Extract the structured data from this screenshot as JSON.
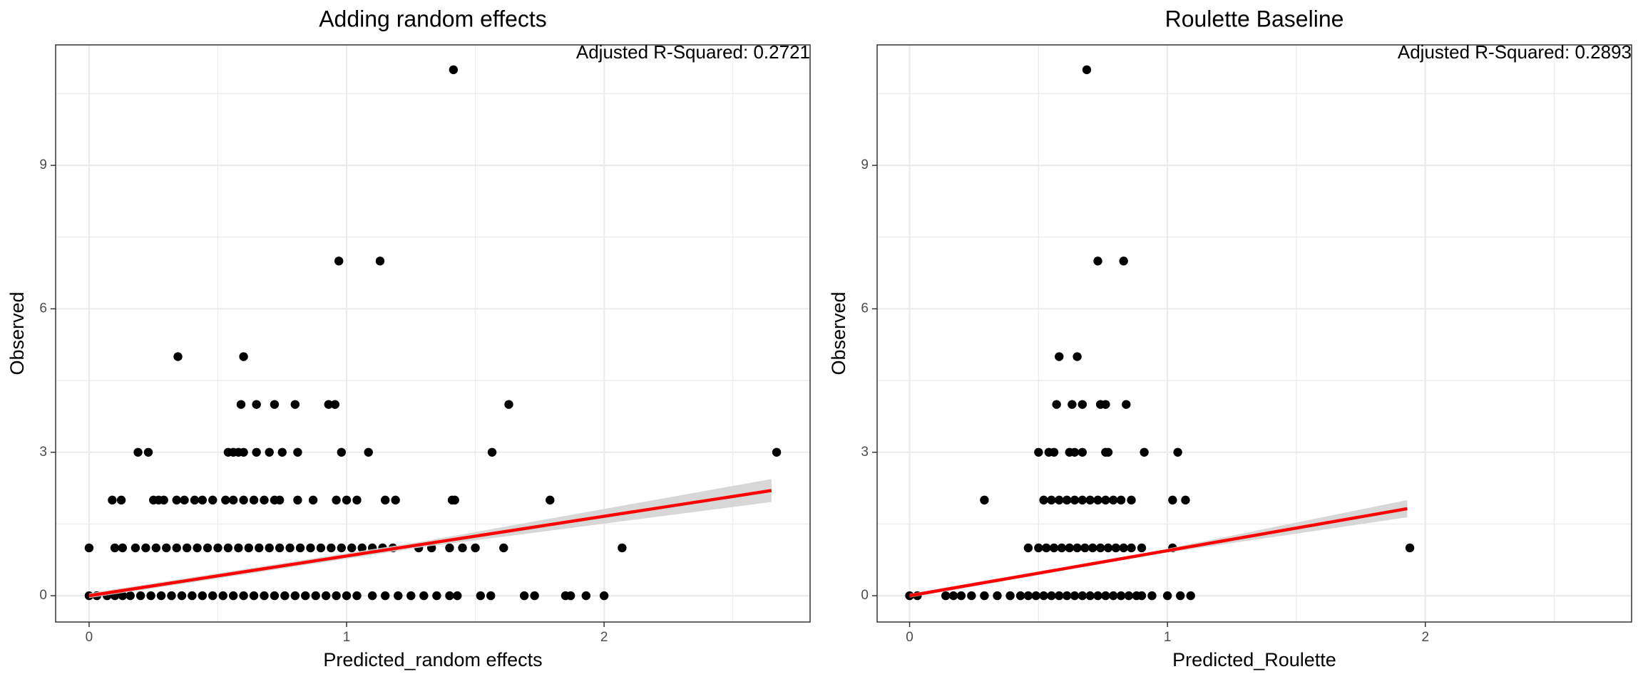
{
  "chart_data": [
    {
      "type": "scatter",
      "title": "Adding random effects",
      "xlabel": "Predicted_random effects",
      "ylabel": "Observed",
      "annotation": "Adjusted R-Squared: 0.2721",
      "x": [
        0,
        0.03,
        0.07,
        0.1,
        0.13,
        0.16,
        0.2,
        0.24,
        0.28,
        0.32,
        0.36,
        0.4,
        0.44,
        0.48,
        0.52,
        0.56,
        0.6,
        0.64,
        0.68,
        0.72,
        0.76,
        0.8,
        0.84,
        0.88,
        0.92,
        0.96,
        1.0,
        1.04,
        1.1,
        1.15,
        1.2,
        1.25,
        1.3,
        1.35,
        1.4,
        1.43,
        1.52,
        1.56,
        1.69,
        1.73,
        1.85,
        1.87,
        1.93,
        2.0,
        0,
        0.1,
        0.13,
        0.18,
        0.22,
        0.26,
        0.3,
        0.34,
        0.38,
        0.42,
        0.46,
        0.5,
        0.54,
        0.58,
        0.62,
        0.66,
        0.7,
        0.74,
        0.78,
        0.82,
        0.86,
        0.9,
        0.94,
        0.98,
        1.02,
        1.06,
        1.1,
        1.14,
        1.18,
        1.28,
        1.33,
        1.4,
        1.45,
        1.5,
        1.61,
        2.07,
        0.09,
        0.125,
        0.25,
        0.27,
        0.29,
        0.34,
        0.37,
        0.41,
        0.44,
        0.48,
        0.53,
        0.56,
        0.6,
        0.64,
        0.68,
        0.72,
        0.74,
        0.81,
        0.87,
        0.96,
        1.0,
        1.04,
        1.15,
        1.19,
        1.41,
        1.42,
        1.79,
        0.19,
        0.23,
        0.54,
        0.56,
        0.58,
        0.6,
        0.65,
        0.7,
        0.75,
        0.81,
        0.98,
        1.085,
        1.565,
        2.67,
        0.59,
        0.65,
        0.72,
        0.8,
        0.93,
        0.955,
        1.63,
        0.345,
        0.6,
        0.97,
        1.13,
        1.415
      ],
      "y": [
        0,
        0,
        0,
        0,
        0,
        0,
        0,
        0,
        0,
        0,
        0,
        0,
        0,
        0,
        0,
        0,
        0,
        0,
        0,
        0,
        0,
        0,
        0,
        0,
        0,
        0,
        0,
        0,
        0,
        0,
        0,
        0,
        0,
        0,
        0,
        0,
        0,
        0,
        0,
        0,
        0,
        0,
        0,
        0,
        1,
        1,
        1,
        1,
        1,
        1,
        1,
        1,
        1,
        1,
        1,
        1,
        1,
        1,
        1,
        1,
        1,
        1,
        1,
        1,
        1,
        1,
        1,
        1,
        1,
        1,
        1,
        1,
        1,
        1,
        1,
        1,
        1,
        1,
        1,
        1,
        2,
        2,
        2,
        2,
        2,
        2,
        2,
        2,
        2,
        2,
        2,
        2,
        2,
        2,
        2,
        2,
        2,
        2,
        2,
        2,
        2,
        2,
        2,
        2,
        2,
        2,
        2,
        3,
        3,
        3,
        3,
        3,
        3,
        3,
        3,
        3,
        3,
        3,
        3,
        3,
        3,
        4,
        4,
        4,
        4,
        4,
        4,
        4,
        5,
        5,
        7,
        7,
        11
      ],
      "point_color": "#000000",
      "fit": {
        "x": [
          0,
          1.3,
          2.65
        ],
        "y": [
          0,
          1.08,
          2.2
        ],
        "lower": [
          -0.05,
          1.02,
          1.96
        ],
        "upper": [
          0.05,
          1.14,
          2.44
        ],
        "color": "#ff0000",
        "band_color": "#d3d3d3"
      },
      "xlim": [
        -0.13,
        2.8
      ],
      "ylim": [
        -0.55,
        11.52
      ],
      "xticks": [
        0,
        1,
        2
      ],
      "yticks": [
        0,
        3,
        6,
        9
      ],
      "x_minor_grid": [
        0.5,
        1.5,
        2.5
      ],
      "y_minor_grid": [
        1.5,
        4.5,
        7.5,
        10.5
      ],
      "grid": true
    },
    {
      "type": "scatter",
      "title": "Roulette Baseline",
      "xlabel": "Predicted_Roulette",
      "ylabel": "Observed",
      "annotation": "Adjusted R-Squared: 0.2893",
      "x": [
        0,
        0.03,
        0.14,
        0.17,
        0.2,
        0.24,
        0.29,
        0.34,
        0.39,
        0.43,
        0.46,
        0.49,
        0.52,
        0.55,
        0.58,
        0.61,
        0.64,
        0.67,
        0.7,
        0.73,
        0.76,
        0.79,
        0.82,
        0.85,
        0.88,
        0.9,
        0.94,
        1.0,
        1.05,
        1.09,
        0.46,
        0.5,
        0.53,
        0.56,
        0.59,
        0.62,
        0.65,
        0.68,
        0.71,
        0.74,
        0.77,
        0.8,
        0.83,
        0.86,
        0.9,
        1.02,
        1.94,
        0.29,
        0.52,
        0.55,
        0.58,
        0.61,
        0.64,
        0.67,
        0.7,
        0.73,
        0.76,
        0.79,
        0.82,
        0.86,
        1.02,
        1.07,
        0.5,
        0.54,
        0.56,
        0.62,
        0.64,
        0.67,
        0.76,
        0.77,
        0.91,
        1.04,
        0.57,
        0.63,
        0.67,
        0.74,
        0.76,
        0.84,
        0.58,
        0.65,
        0.73,
        0.83,
        0.687
      ],
      "y": [
        0,
        0,
        0,
        0,
        0,
        0,
        0,
        0,
        0,
        0,
        0,
        0,
        0,
        0,
        0,
        0,
        0,
        0,
        0,
        0,
        0,
        0,
        0,
        0,
        0,
        0,
        0,
        0,
        0,
        0,
        1,
        1,
        1,
        1,
        1,
        1,
        1,
        1,
        1,
        1,
        1,
        1,
        1,
        1,
        1,
        1,
        1,
        2,
        2,
        2,
        2,
        2,
        2,
        2,
        2,
        2,
        2,
        2,
        2,
        2,
        2,
        2,
        3,
        3,
        3,
        3,
        3,
        3,
        3,
        3,
        3,
        3,
        4,
        4,
        4,
        4,
        4,
        4,
        5,
        5,
        7,
        7,
        11
      ],
      "point_color": "#000000",
      "fit": {
        "x": [
          0,
          0.96,
          1.93
        ],
        "y": [
          0,
          0.905,
          1.82
        ],
        "lower": [
          -0.04,
          0.87,
          1.64
        ],
        "upper": [
          0.04,
          0.94,
          2.0
        ],
        "color": "#ff0000",
        "band_color": "#d3d3d3"
      },
      "xlim": [
        -0.126,
        2.8
      ],
      "ylim": [
        -0.55,
        11.52
      ],
      "xticks": [
        0,
        1,
        2
      ],
      "yticks": [
        0,
        3,
        6,
        9
      ],
      "x_minor_grid": [
        0.5,
        1.5,
        2.5
      ],
      "y_minor_grid": [
        1.5,
        4.5,
        7.5,
        10.5
      ],
      "grid": true
    }
  ]
}
